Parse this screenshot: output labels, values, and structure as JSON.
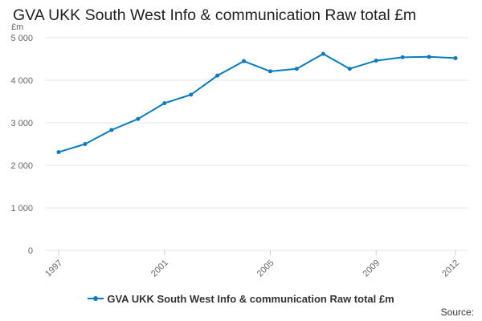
{
  "chart_data": {
    "type": "line",
    "title": "GVA UKK South West Info & communication Raw total £m",
    "ylabel": "£m",
    "xlabel": "",
    "x": [
      1997,
      1998,
      1999,
      2000,
      2001,
      2002,
      2003,
      2004,
      2005,
      2006,
      2007,
      2008,
      2009,
      2010,
      2011,
      2012
    ],
    "x_tick_labels": [
      "1997",
      "2001",
      "2005",
      "2009",
      "2012"
    ],
    "ylim": [
      0,
      5000
    ],
    "y_tick_labels": [
      "0",
      "1 000",
      "2 000",
      "3 000",
      "4 000",
      "5 000"
    ],
    "series": [
      {
        "name": "GVA UKK South West Info & communication Raw total £m",
        "values": [
          2310,
          2500,
          2830,
          3090,
          3460,
          3660,
          4110,
          4450,
          4210,
          4270,
          4620,
          4270,
          4460,
          4540,
          4550,
          4520
        ]
      }
    ],
    "grid": true,
    "legend_position": "bottom",
    "colors": {
      "series": "#0a7bbf",
      "grid": "#e6e6e6"
    }
  },
  "footer": {
    "source_label": "Source:"
  }
}
